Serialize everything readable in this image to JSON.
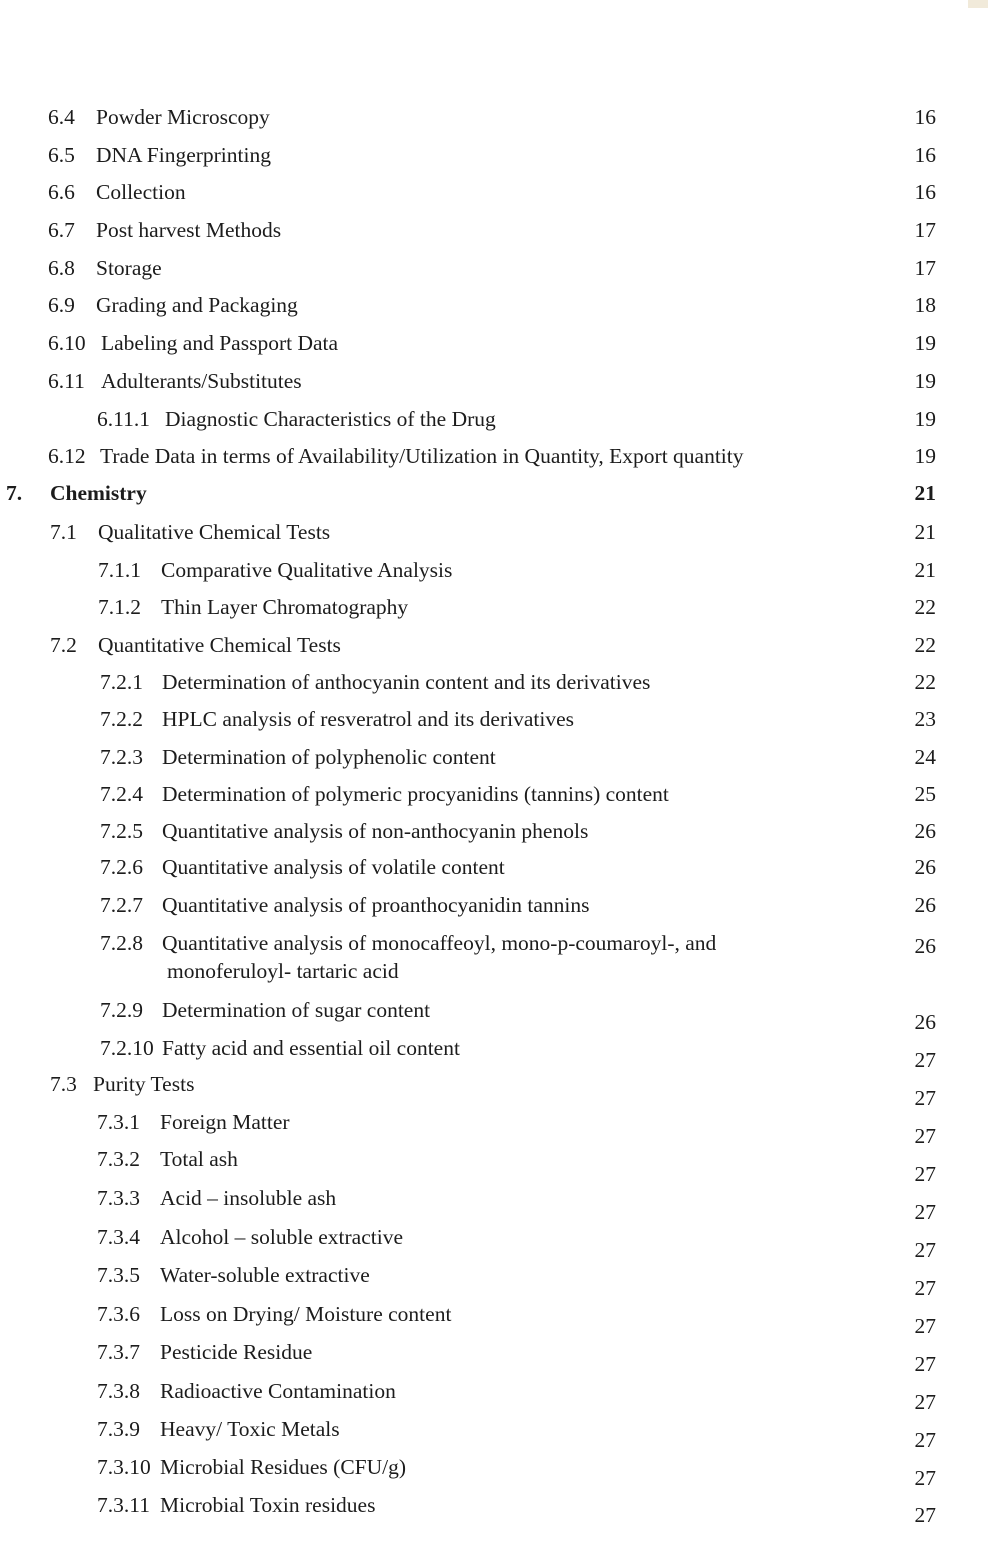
{
  "toc": [
    {
      "num": "6.4",
      "title": "Powder Microscopy",
      "page": "16"
    },
    {
      "num": "6.5",
      "title": "DNA Fingerprinting",
      "page": "16"
    },
    {
      "num": "6.6",
      "title": "Collection",
      "page": "16"
    },
    {
      "num": "6.7",
      "title": "Post harvest Methods",
      "page": "17"
    },
    {
      "num": "6.8",
      "title": "Storage",
      "page": "17"
    },
    {
      "num": "6.9",
      "title": "Grading and Packaging",
      "page": "18"
    },
    {
      "num": "6.10",
      "title": "Labeling and Passport Data",
      "page": "19"
    },
    {
      "num": "6.11",
      "title": "Adulterants/Substitutes",
      "page": "19"
    },
    {
      "num": "6.11.1",
      "title": "Diagnostic Characteristics of the Drug",
      "page": "19"
    },
    {
      "num": "6.12",
      "title": "Trade Data in terms of Availability/Utilization in Quantity, Export quantity",
      "page": "19"
    },
    {
      "num": "7.",
      "title": "Chemistry",
      "page": "21"
    },
    {
      "num": "7.1",
      "title": "Qualitative Chemical Tests",
      "page": "21"
    },
    {
      "num": "7.1.1",
      "title": "Comparative Qualitative Analysis",
      "page": "21"
    },
    {
      "num": "7.1.2",
      "title": "Thin Layer Chromatography",
      "page": "22"
    },
    {
      "num": "7.2",
      "title": "Quantitative Chemical Tests",
      "page": "22"
    },
    {
      "num": "7.2.1",
      "title": "Determination of anthocyanin content and its derivatives",
      "page": "22"
    },
    {
      "num": "7.2.2",
      "title": "HPLC analysis of resveratrol and its derivatives",
      "page": "23"
    },
    {
      "num": "7.2.3",
      "title": "Determination of polyphenolic content",
      "page": "24"
    },
    {
      "num": "7.2.4",
      "title": "Determination of polymeric procyanidins (tannins) content",
      "page": "25"
    },
    {
      "num": "7.2.5",
      "title": "Quantitative analysis of non-anthocyanin phenols",
      "page": "26"
    },
    {
      "num": "7.2.6",
      "title": "Quantitative analysis of volatile content",
      "page": "26"
    },
    {
      "num": "7.2.7",
      "title": "Quantitative analysis of proanthocyanidin tannins",
      "page": "26"
    },
    {
      "num": "7.2.8",
      "title": "Quantitative analysis of monocaffeoyl, mono-p-coumaroyl-, and",
      "title_line2": "monoferuloyl- tartaric acid",
      "page": "26"
    },
    {
      "num": "7.2.9",
      "title": "Determination of sugar content",
      "page": "26"
    },
    {
      "num": "7.2.10",
      "title": "Fatty acid and essential oil content",
      "page": "27"
    },
    {
      "num": "7.3",
      "title": "Purity Tests",
      "page": "27"
    },
    {
      "num": "7.3.1",
      "title": "Foreign Matter",
      "page": "27"
    },
    {
      "num": "7.3.2",
      "title": "Total ash",
      "page": "27"
    },
    {
      "num": "7.3.3",
      "title": "Acid – insoluble ash",
      "page": "27"
    },
    {
      "num": "7.3.4",
      "title": "Alcohol – soluble extractive",
      "page": "27"
    },
    {
      "num": "7.3.5",
      "title": "Water-soluble extractive",
      "page": "27"
    },
    {
      "num": "7.3.6",
      "title": "Loss on Drying/ Moisture content",
      "page": "27"
    },
    {
      "num": "7.3.7",
      "title": "Pesticide Residue",
      "page": "27"
    },
    {
      "num": "7.3.8",
      "title": "Radioactive Contamination",
      "page": "27"
    },
    {
      "num": "7.3.9",
      "title": "Heavy/ Toxic Metals",
      "page": "27"
    },
    {
      "num": "7.3.10",
      "title": "Microbial Residues (CFU/g)",
      "page": "27"
    },
    {
      "num": "7.3.11",
      "title": "Microbial Toxin residues",
      "page": "27"
    }
  ]
}
